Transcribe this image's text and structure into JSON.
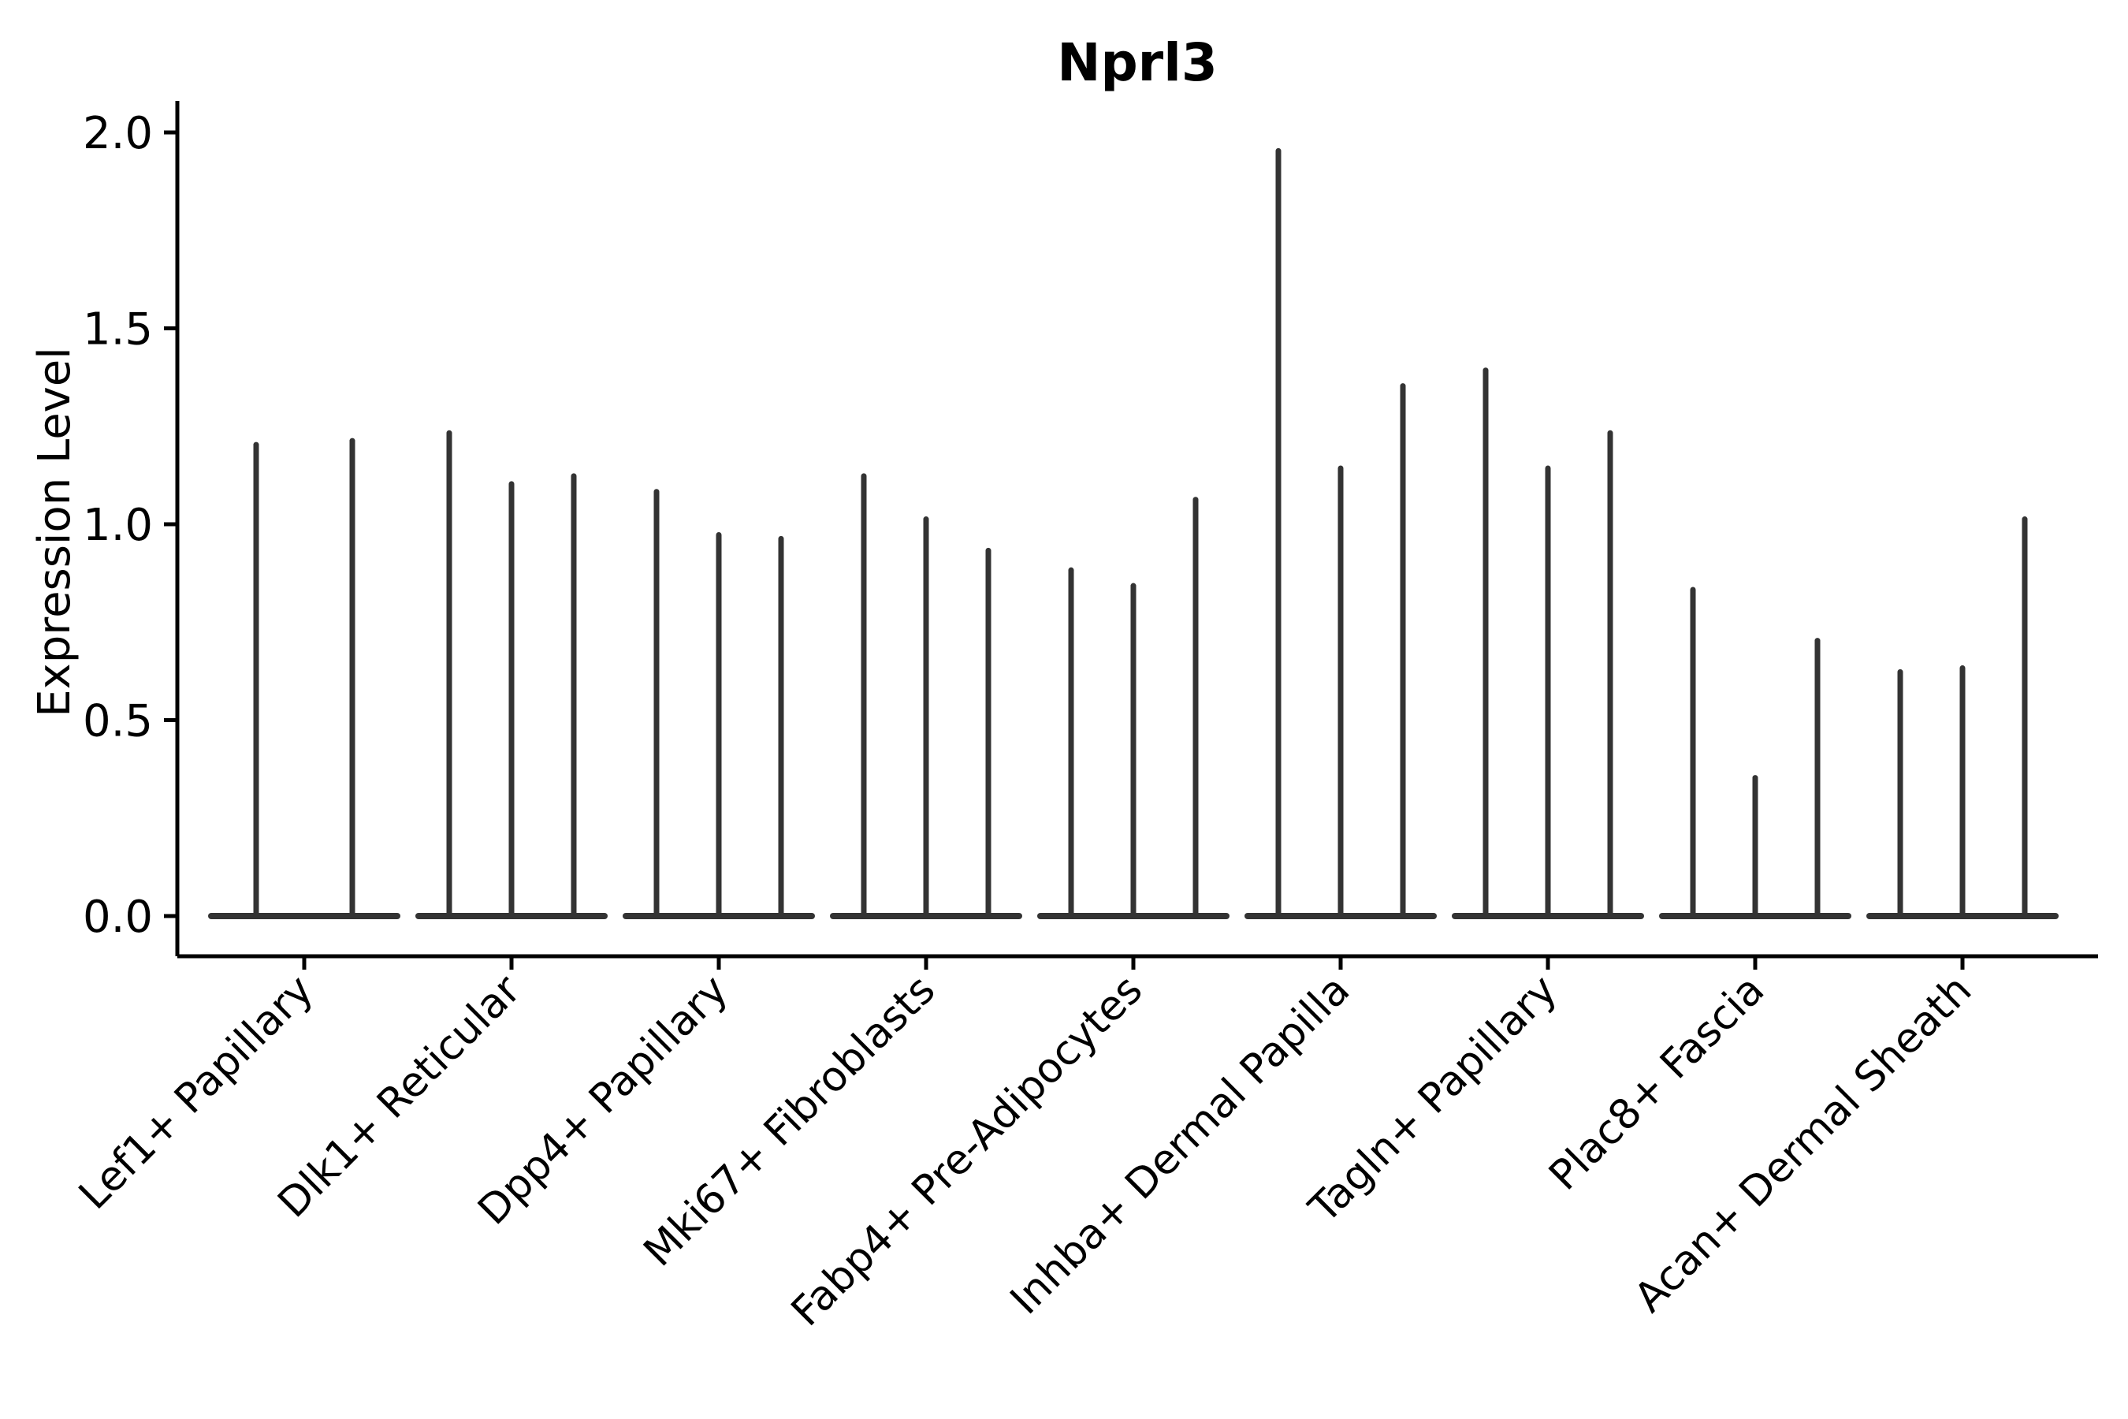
{
  "accent_color": "#333333",
  "axis_color": "#000000",
  "background_color": "#ffffff",
  "chart_data": {
    "type": "violin",
    "title": "Nprl3",
    "ylabel": "Expression Level",
    "xlabel": "",
    "ylim": [
      0.0,
      2.0
    ],
    "ytick_values": [
      0.0,
      0.5,
      1.0,
      1.5,
      2.0
    ],
    "ytick_labels": [
      "0.0",
      "0.5",
      "1.0",
      "1.5",
      "2.0"
    ],
    "legend": "none",
    "grid": false,
    "layout": {
      "x_tick_rotation_deg": 45,
      "violins_are_thin_spikes": true
    },
    "categories": [
      "Lef1+ Papillary",
      "Dlk1+ Reticular",
      "Dpp4+ Papillary",
      "Mki67+ Fibroblasts",
      "Fabp4+ Pre-Adipocytes",
      "Inhba+ Dermal Papilla",
      "Tagln+ Papillary",
      "Plac8+ Fascia",
      "Acan+ Dermal Sheath"
    ],
    "groups": [
      {
        "label": "Lef1+ Papillary",
        "violin_maxima": [
          1.21,
          1.22
        ]
      },
      {
        "label": "Dlk1+ Reticular",
        "violin_maxima": [
          1.24,
          1.11,
          1.13
        ]
      },
      {
        "label": "Dpp4+ Papillary",
        "violin_maxima": [
          1.09,
          0.98,
          0.97
        ]
      },
      {
        "label": "Mki67+ Fibroblasts",
        "violin_maxima": [
          1.13,
          1.02,
          0.94
        ]
      },
      {
        "label": "Fabp4+ Pre-Adipocytes",
        "violin_maxima": [
          0.89,
          0.85,
          1.07
        ]
      },
      {
        "label": "Inhba+ Dermal Papilla",
        "violin_maxima": [
          1.96,
          1.15,
          1.36
        ]
      },
      {
        "label": "Tagln+ Papillary",
        "violin_maxima": [
          1.4,
          1.15,
          1.24
        ]
      },
      {
        "label": "Plac8+ Fascia",
        "violin_maxima": [
          0.84,
          0.36,
          0.71
        ]
      },
      {
        "label": "Acan+ Dermal Sheath",
        "violin_maxima": [
          0.63,
          0.64,
          1.02
        ]
      }
    ]
  }
}
